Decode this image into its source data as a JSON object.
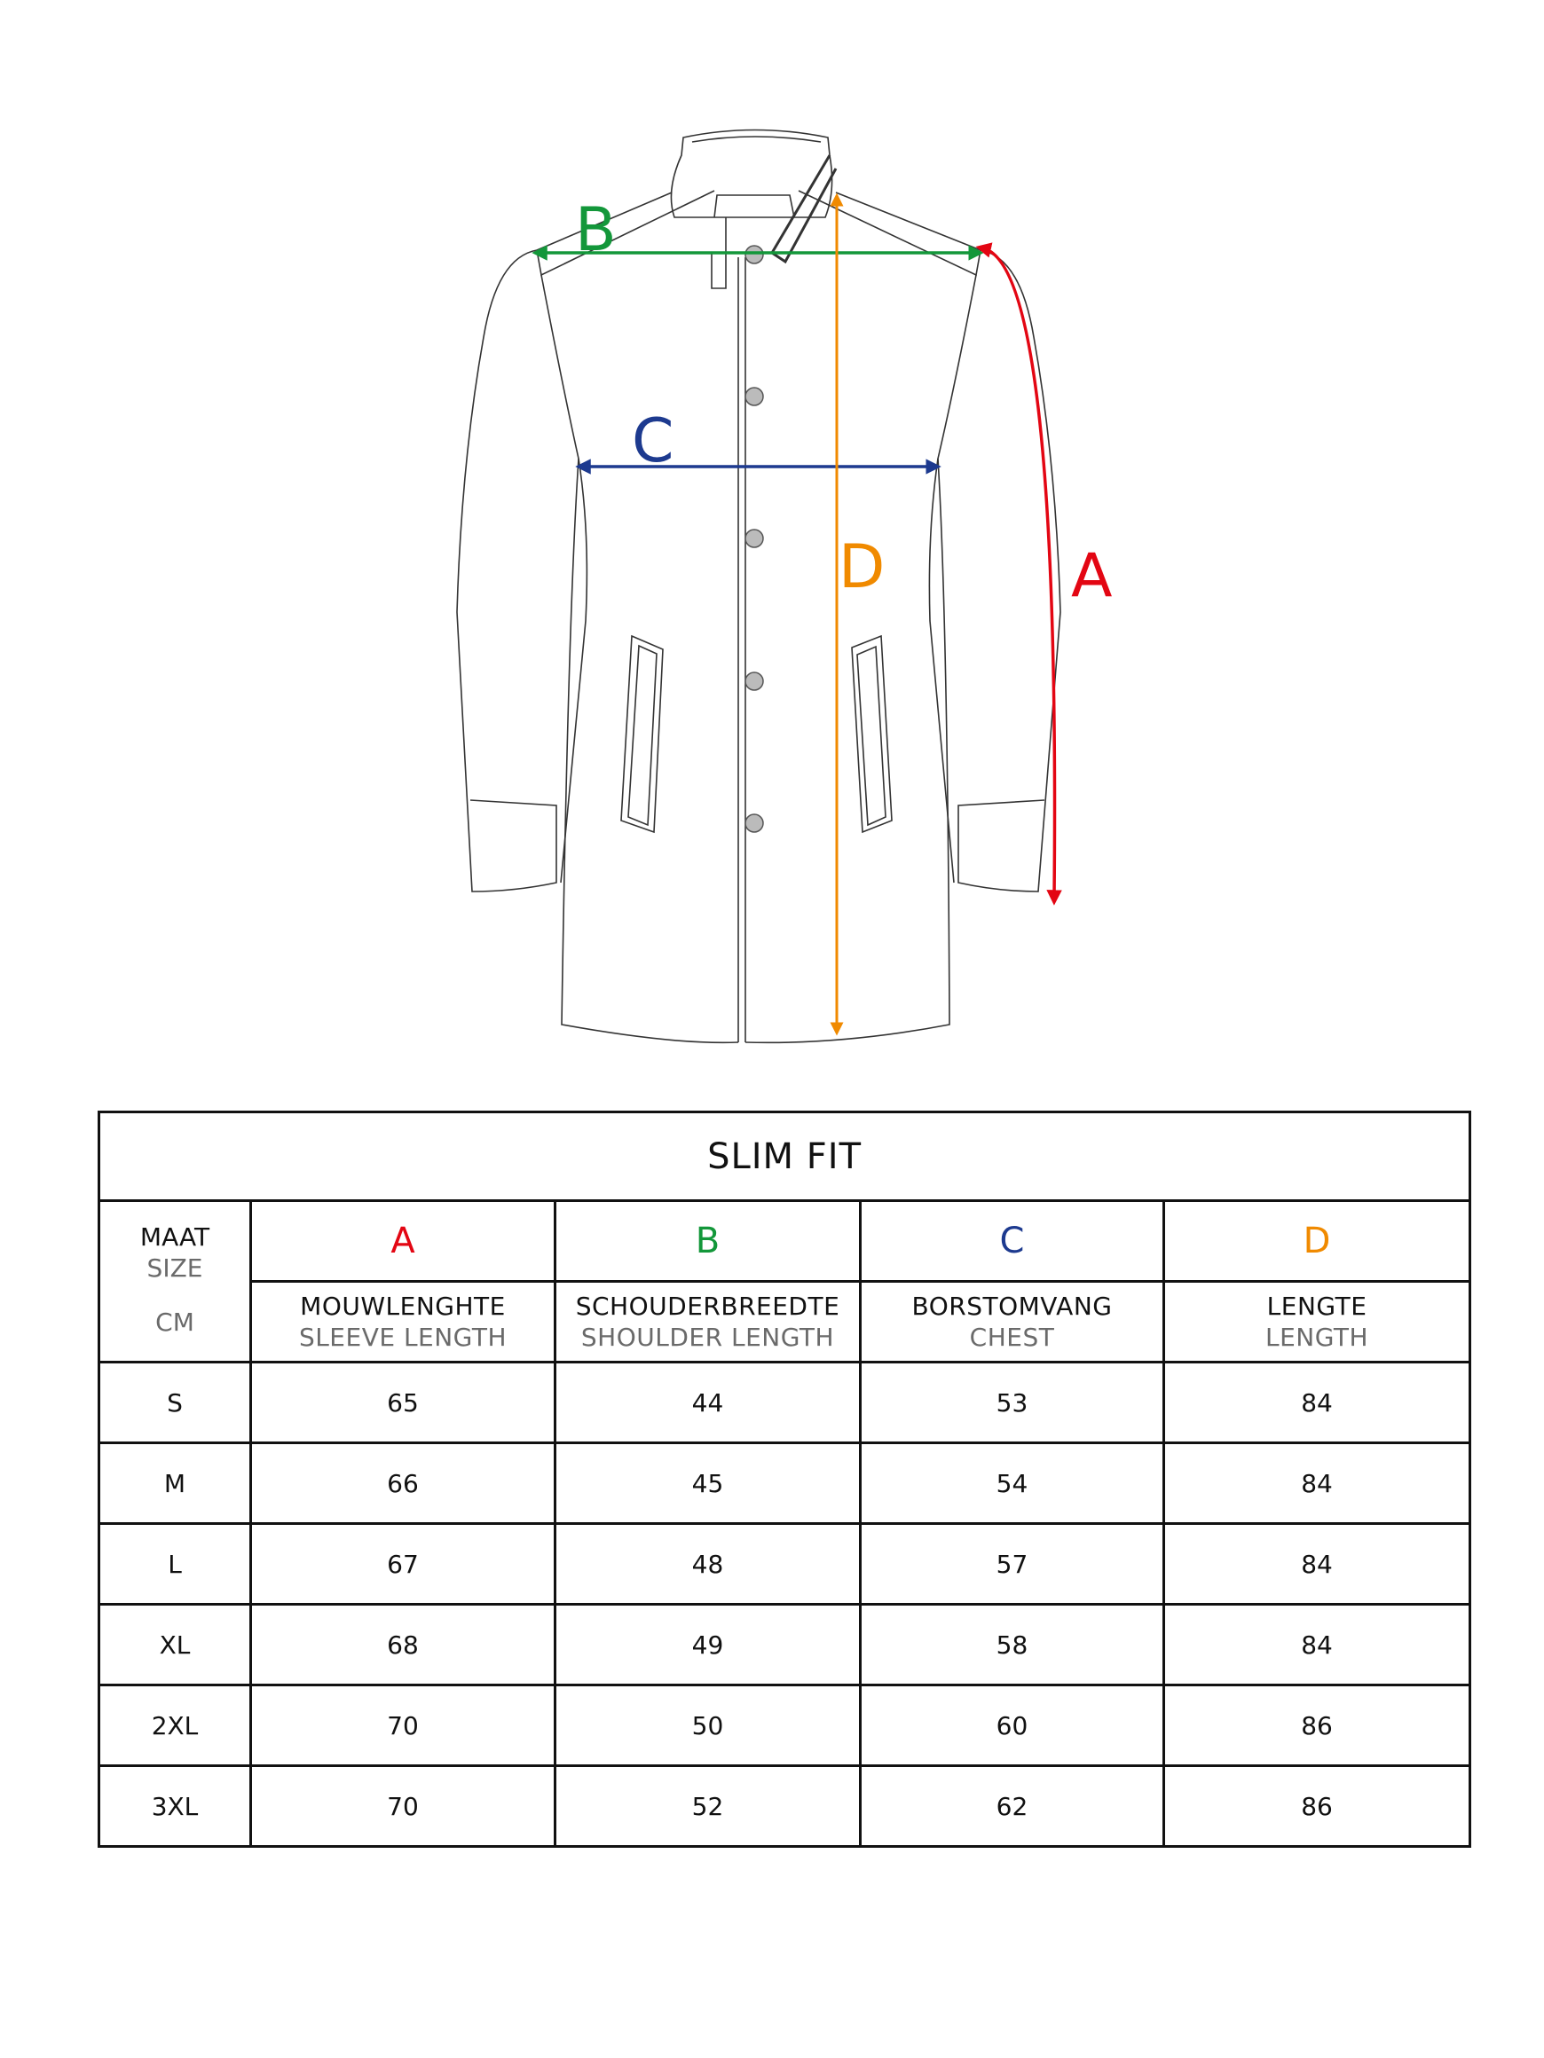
{
  "diagram": {
    "labels": {
      "A": "A",
      "B": "B",
      "C": "C",
      "D": "D"
    },
    "colors": {
      "A": "#e30613",
      "B": "#13973a",
      "C": "#1d3a8f",
      "D": "#f08a00"
    }
  },
  "table": {
    "title": "SLIM FIT",
    "size_header": {
      "nl": "MAAT",
      "en": "SIZE",
      "unit": "CM"
    },
    "columns": [
      {
        "letter": "A",
        "nl": "MOUWLENGHTE",
        "en": "SLEEVE LENGTH",
        "color": "#e30613"
      },
      {
        "letter": "B",
        "nl": "SCHOUDERBREEDTE",
        "en": "SHOULDER LENGTH",
        "color": "#13973a"
      },
      {
        "letter": "C",
        "nl": "BORSTOMVANG",
        "en": "CHEST",
        "color": "#1d3a8f"
      },
      {
        "letter": "D",
        "nl": "LENGTE",
        "en": "LENGTH",
        "color": "#f08a00"
      }
    ],
    "rows": [
      {
        "size": "S",
        "values": [
          "65",
          "44",
          "53",
          "84"
        ]
      },
      {
        "size": "M",
        "values": [
          "66",
          "45",
          "54",
          "84"
        ]
      },
      {
        "size": "L",
        "values": [
          "67",
          "48",
          "57",
          "84"
        ]
      },
      {
        "size": "XL",
        "values": [
          "68",
          "49",
          "58",
          "84"
        ]
      },
      {
        "size": "2XL",
        "values": [
          "70",
          "50",
          "60",
          "86"
        ]
      },
      {
        "size": "3XL",
        "values": [
          "70",
          "52",
          "62",
          "86"
        ]
      }
    ]
  }
}
